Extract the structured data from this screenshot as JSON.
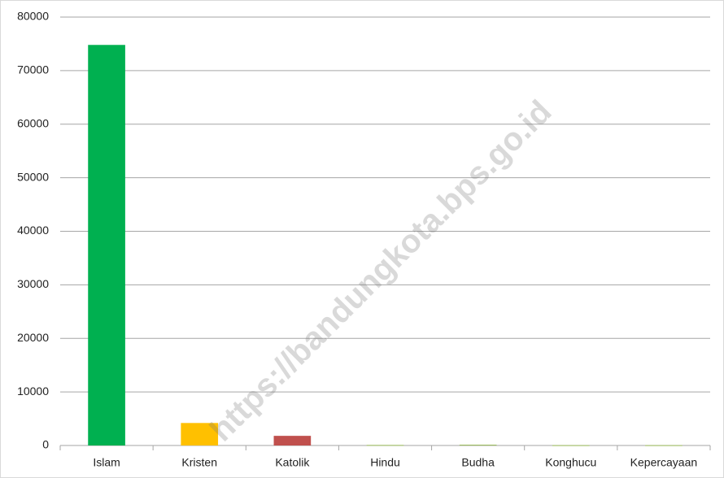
{
  "chart_data": {
    "type": "bar",
    "categories": [
      "Islam",
      "Kristen",
      "Katolik",
      "Hindu",
      "Budha",
      "Konghucu",
      "Kepercayaan"
    ],
    "values": [
      74800,
      4200,
      1800,
      100,
      150,
      60,
      60
    ],
    "colors": [
      "#00b050",
      "#ffc000",
      "#c0504d",
      "#9bbb59",
      "#9bbb59",
      "#9bbb59",
      "#9bbb59"
    ],
    "ylim": [
      0,
      80000
    ],
    "yticks": [
      0,
      10000,
      20000,
      30000,
      40000,
      50000,
      60000,
      70000,
      80000
    ],
    "grid": true,
    "watermark": "https://bandungkota.bps.go.id"
  }
}
